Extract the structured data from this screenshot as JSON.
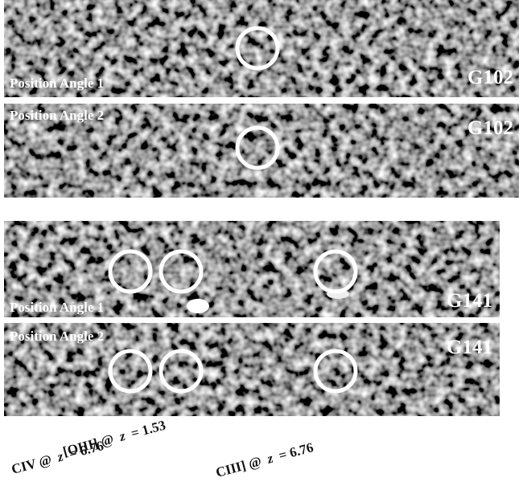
{
  "panels": [
    {
      "angle_label": "Position Angle 1",
      "grism": "G102"
    },
    {
      "angle_label": "Position Angle 2",
      "grism": "G102"
    },
    {
      "angle_label": "Position Angle 1",
      "grism": "G141"
    },
    {
      "angle_label": "Position Angle 2",
      "grism": "G141"
    }
  ],
  "line_labels": [
    {
      "species": "CIV @",
      "variable": "z",
      "equals": "= 6.76"
    },
    {
      "species": "[OIII] @",
      "variable": "z",
      "equals": "= 1.53"
    },
    {
      "species": "CIII] @",
      "variable": "z",
      "equals": "= 6.76"
    }
  ]
}
